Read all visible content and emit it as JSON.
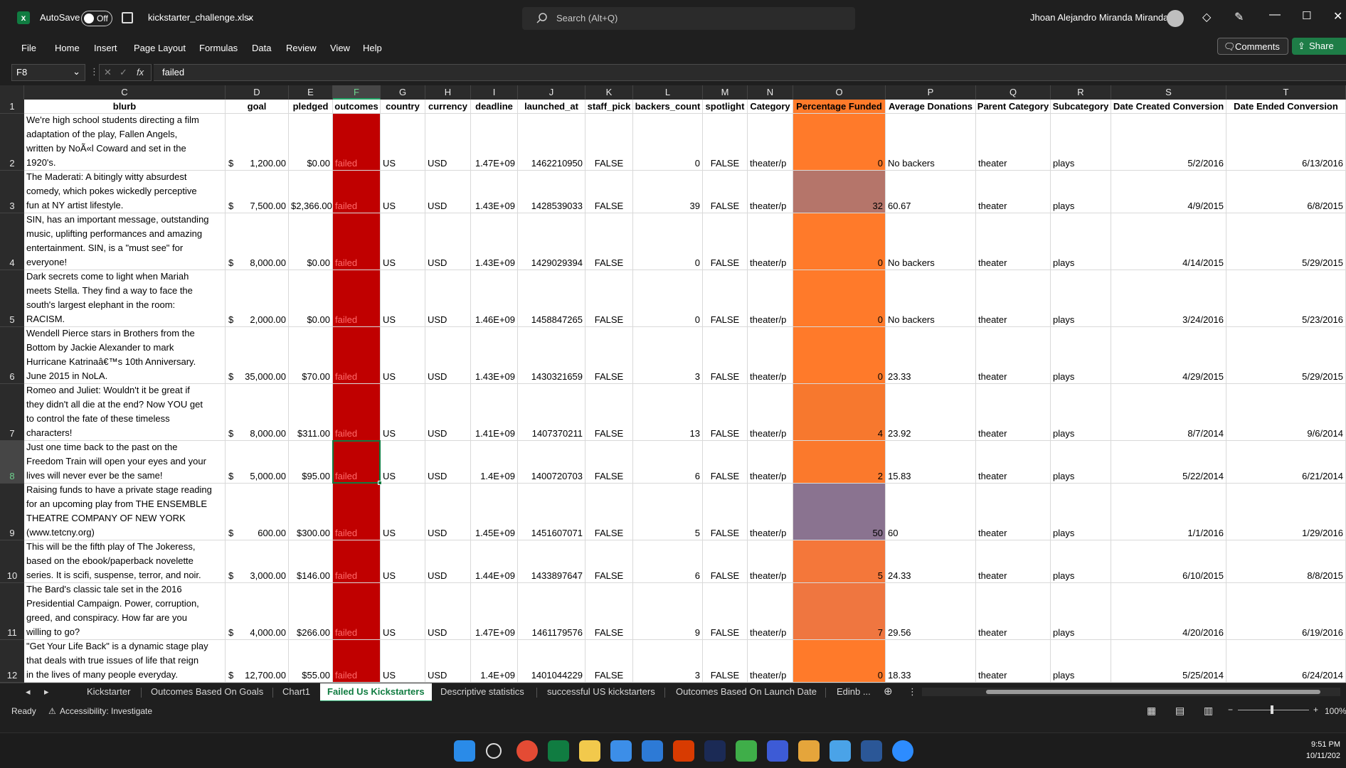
{
  "titlebar": {
    "autosave_label": "AutoSave",
    "autosave_state": "Off",
    "filename": "kickstarter_challenge.xlsx",
    "search_placeholder": "Search (Alt+Q)",
    "user_name": "Jhoan Alejandro Miranda Miranda"
  },
  "menu": [
    "File",
    "Home",
    "Insert",
    "Page Layout",
    "Formulas",
    "Data",
    "Review",
    "View",
    "Help"
  ],
  "buttons": {
    "comments": "Comments",
    "share": "Share"
  },
  "formula_bar": {
    "name_box": "F8",
    "formula": "failed"
  },
  "columns": [
    "C",
    "D",
    "E",
    "F",
    "G",
    "H",
    "I",
    "J",
    "K",
    "L",
    "M",
    "N",
    "O",
    "P",
    "Q",
    "R",
    "S",
    "T"
  ],
  "headers": [
    "blurb",
    "goal",
    "pledged",
    "outcomes",
    "country",
    "currency",
    "deadline",
    "launched_at",
    "staff_pick",
    "backers_count",
    "spotlight",
    "Category",
    "Percentage Funded",
    "Average Donations",
    "Parent Category",
    "Subcategory",
    "Date Created Conversion",
    "Date Ended Conversion"
  ],
  "rows": [
    {
      "n": "2",
      "blurb": [
        "We're high school students directing a film",
        "adaptation of the play, Fallen Angels,",
        "written by NoÃ«l Coward and set in the",
        "1920's."
      ],
      "goal": "1,200.00",
      "pledged": "$0.00",
      "outcome": "failed",
      "country": "US",
      "currency": "USD",
      "deadline": "1.47E+09",
      "launched": "1462210950",
      "staff": "FALSE",
      "backers": "0",
      "spot": "FALSE",
      "cat": "theater/p",
      "pct": "0",
      "pct_color": "#ff7a2a",
      "avg": "No backers",
      "parent": "theater",
      "sub": "plays",
      "created": "5/2/2016",
      "ended": "6/13/2016"
    },
    {
      "n": "3",
      "blurb": [
        "The Maderati: A bitingly witty absurdest",
        "comedy, which pokes wickedly perceptive",
        "fun at NY artist lifestyle."
      ],
      "goal": "7,500.00",
      "pledged": "$2,366.00",
      "outcome": "failed",
      "country": "US",
      "currency": "USD",
      "deadline": "1.43E+09",
      "launched": "1428539033",
      "staff": "FALSE",
      "backers": "39",
      "spot": "FALSE",
      "cat": "theater/p",
      "pct": "32",
      "pct_color": "#b5756a",
      "avg": "60.67",
      "parent": "theater",
      "sub": "plays",
      "created": "4/9/2015",
      "ended": "6/8/2015"
    },
    {
      "n": "4",
      "blurb": [
        "SIN, has an important message, outstanding",
        "music, uplifting performances and amazing",
        "entertainment. SIN, is a \"must see\" for",
        "everyone!"
      ],
      "goal": "8,000.00",
      "pledged": "$0.00",
      "outcome": "failed",
      "country": "US",
      "currency": "USD",
      "deadline": "1.43E+09",
      "launched": "1429029394",
      "staff": "FALSE",
      "backers": "0",
      "spot": "FALSE",
      "cat": "theater/p",
      "pct": "0",
      "pct_color": "#ff7a2a",
      "avg": "No backers",
      "parent": "theater",
      "sub": "plays",
      "created": "4/14/2015",
      "ended": "5/29/2015"
    },
    {
      "n": "5",
      "blurb": [
        "Dark secrets come to light when Mariah",
        "meets Stella. They find a way to face the",
        "south's largest elephant in the room:",
        "RACISM."
      ],
      "goal": "2,000.00",
      "pledged": "$0.00",
      "outcome": "failed",
      "country": "US",
      "currency": "USD",
      "deadline": "1.46E+09",
      "launched": "1458847265",
      "staff": "FALSE",
      "backers": "0",
      "spot": "FALSE",
      "cat": "theater/p",
      "pct": "0",
      "pct_color": "#ff7a2a",
      "avg": "No backers",
      "parent": "theater",
      "sub": "plays",
      "created": "3/24/2016",
      "ended": "5/23/2016"
    },
    {
      "n": "6",
      "blurb": [
        "Wendell Pierce stars in Brothers from the",
        "Bottom by Jackie Alexander to mark",
        "Hurricane Katrinaâ€™s 10th Anniversary.",
        "June 2015 in NoLA."
      ],
      "goal": "35,000.00",
      "pledged": "$70.00",
      "outcome": "failed",
      "country": "US",
      "currency": "USD",
      "deadline": "1.43E+09",
      "launched": "1430321659",
      "staff": "FALSE",
      "backers": "3",
      "spot": "FALSE",
      "cat": "theater/p",
      "pct": "0",
      "pct_color": "#ff7a2a",
      "avg": "23.33",
      "parent": "theater",
      "sub": "plays",
      "created": "4/29/2015",
      "ended": "5/29/2015"
    },
    {
      "n": "7",
      "blurb": [
        "Romeo and Juliet: Wouldn't it be great if",
        "they didn't all die at the end? Now YOU get",
        "to control the fate of these timeless",
        "characters!"
      ],
      "goal": "8,000.00",
      "pledged": "$311.00",
      "outcome": "failed",
      "country": "US",
      "currency": "USD",
      "deadline": "1.41E+09",
      "launched": "1407370211",
      "staff": "FALSE",
      "backers": "13",
      "spot": "FALSE",
      "cat": "theater/p",
      "pct": "4",
      "pct_color": "#f7782e",
      "avg": "23.92",
      "parent": "theater",
      "sub": "plays",
      "created": "8/7/2014",
      "ended": "9/6/2014"
    },
    {
      "n": "8",
      "blurb": [
        "Just one time back to the past on the",
        "Freedom Train will open your eyes and your",
        "lives will never ever be the same!"
      ],
      "goal": "5,000.00",
      "pledged": "$95.00",
      "outcome": "failed",
      "country": "US",
      "currency": "USD",
      "deadline": "1.4E+09",
      "launched": "1400720703",
      "staff": "FALSE",
      "backers": "6",
      "spot": "FALSE",
      "cat": "theater/p",
      "pct": "2",
      "pct_color": "#fb792c",
      "avg": "15.83",
      "parent": "theater",
      "sub": "plays",
      "created": "5/22/2014",
      "ended": "6/21/2014"
    },
    {
      "n": "9",
      "blurb": [
        "Raising funds to have a private stage reading",
        "for an upcoming play from THE ENSEMBLE",
        "THEATRE COMPANY OF NEW YORK",
        "(www.tetcny.org)"
      ],
      "goal": "600.00",
      "pledged": "$300.00",
      "outcome": "failed",
      "country": "US",
      "currency": "USD",
      "deadline": "1.45E+09",
      "launched": "1451607071",
      "staff": "FALSE",
      "backers": "5",
      "spot": "FALSE",
      "cat": "theater/p",
      "pct": "50",
      "pct_color": "#8a7390",
      "avg": "60",
      "parent": "theater",
      "sub": "plays",
      "created": "1/1/2016",
      "ended": "1/29/2016"
    },
    {
      "n": "10",
      "blurb": [
        "This will be the fifth play of The Jokeress,",
        "based on the ebook/paperback novelette",
        "series. It is scifi, suspense, terror, and noir."
      ],
      "goal": "3,000.00",
      "pledged": "$146.00",
      "outcome": "failed",
      "country": "US",
      "currency": "USD",
      "deadline": "1.44E+09",
      "launched": "1433897647",
      "staff": "FALSE",
      "backers": "6",
      "spot": "FALSE",
      "cat": "theater/p",
      "pct": "5",
      "pct_color": "#f4773a",
      "avg": "24.33",
      "parent": "theater",
      "sub": "plays",
      "created": "6/10/2015",
      "ended": "8/8/2015"
    },
    {
      "n": "11",
      "blurb": [
        "The Bard's classic tale set in the 2016",
        "Presidential Campaign. Power, corruption,",
        "greed, and conspiracy. How far are you",
        "willing to go?"
      ],
      "goal": "4,000.00",
      "pledged": "$266.00",
      "outcome": "failed",
      "country": "US",
      "currency": "USD",
      "deadline": "1.47E+09",
      "launched": "1461179576",
      "staff": "FALSE",
      "backers": "9",
      "spot": "FALSE",
      "cat": "theater/p",
      "pct": "7",
      "pct_color": "#ef7640",
      "avg": "29.56",
      "parent": "theater",
      "sub": "plays",
      "created": "4/20/2016",
      "ended": "6/19/2016"
    },
    {
      "n": "12",
      "blurb": [
        "\"Get Your Life Back\" is a dynamic stage play",
        "that deals with true issues of life that reign",
        "in the lives of many people everyday."
      ],
      "goal": "12,700.00",
      "pledged": "$55.00",
      "outcome": "failed",
      "country": "US",
      "currency": "USD",
      "deadline": "1.4E+09",
      "launched": "1401044229",
      "staff": "FALSE",
      "backers": "3",
      "spot": "FALSE",
      "cat": "theater/p",
      "pct": "0",
      "pct_color": "#ff7a2a",
      "avg": "18.33",
      "parent": "theater",
      "sub": "plays",
      "created": "5/25/2014",
      "ended": "6/24/2014"
    }
  ],
  "sheet_tabs": [
    "Kickstarter",
    "Outcomes Based On Goals",
    "Chart1",
    "Failed Us Kickstarters",
    "Descriptive statistics",
    "successful US kickstarters",
    "Outcomes Based On Launch Date",
    "Edinb ..."
  ],
  "active_tab": "Failed Us Kickstarters",
  "status": {
    "ready": "Ready",
    "accessibility": "Accessibility: Investigate",
    "zoom": "100%"
  },
  "clock": {
    "time": "9:51 PM",
    "date": "10/11/202"
  },
  "colors": {
    "fail_fill": "#c00000",
    "fail_text": "#ff6a6a",
    "accent": "#107c41"
  }
}
